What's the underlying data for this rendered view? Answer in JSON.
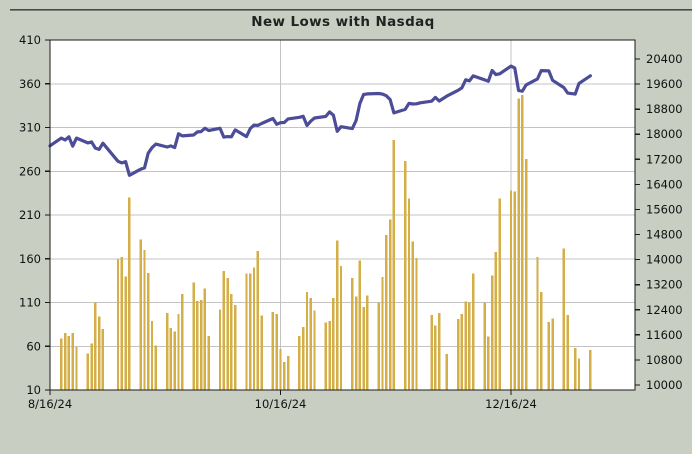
{
  "title": "New Lows with Nasdaq",
  "colors": {
    "background": "#c9cec2",
    "plot_background": "#ffffff",
    "grid": "#c3c3c3",
    "axis": "#1a1a1a",
    "bar": "#d4ae47",
    "line": "#4c4c99",
    "text": "#111111",
    "frame_line": "#474b46"
  },
  "chart_data": {
    "type": "bar+line",
    "title": "New Lows with Nasdaq",
    "legend": "none",
    "grid": true,
    "series": [
      {
        "name": "New Lows",
        "type": "bar",
        "axis": "left",
        "color": "#d4ae47"
      },
      {
        "name": "Nasdaq",
        "type": "line",
        "axis": "right",
        "color": "#4c4c99"
      }
    ],
    "left_axis": {
      "min": 10,
      "max": 410,
      "ticks": [
        410,
        360,
        310,
        260,
        210,
        160,
        110,
        60,
        10
      ]
    },
    "right_axis": {
      "min": 10000,
      "max": 20400,
      "ticks": [
        20400,
        19600,
        18800,
        18000,
        17200,
        16400,
        15600,
        14800,
        14000,
        13200,
        12400,
        11600,
        10800,
        10000
      ]
    },
    "x_tick_labels": [
      "8/16/24",
      "10/16/24",
      "12/16/24"
    ],
    "x": [
      "8/16/24",
      "8/19/24",
      "8/20/24",
      "8/21/24",
      "8/22/24",
      "8/23/24",
      "8/26/24",
      "8/27/24",
      "8/28/24",
      "8/29/24",
      "8/30/24",
      "9/3/24",
      "9/4/24",
      "9/5/24",
      "9/6/24",
      "9/9/24",
      "9/10/24",
      "9/11/24",
      "9/12/24",
      "9/13/24",
      "9/16/24",
      "9/17/24",
      "9/18/24",
      "9/19/24",
      "9/20/24",
      "9/23/24",
      "9/24/24",
      "9/25/24",
      "9/26/24",
      "9/27/24",
      "9/30/24",
      "10/1/24",
      "10/2/24",
      "10/3/24",
      "10/4/24",
      "10/7/24",
      "10/8/24",
      "10/9/24",
      "10/10/24",
      "10/11/24",
      "10/14/24",
      "10/15/24",
      "10/16/24",
      "10/17/24",
      "10/18/24",
      "10/21/24",
      "10/22/24",
      "10/23/24",
      "10/24/24",
      "10/25/24",
      "10/28/24",
      "10/29/24",
      "10/30/24",
      "10/31/24",
      "11/1/24",
      "11/4/24",
      "11/5/24",
      "11/6/24",
      "11/7/24",
      "11/8/24",
      "11/11/24",
      "11/12/24",
      "11/13/24",
      "11/14/24",
      "11/15/24",
      "11/18/24",
      "11/19/24",
      "11/20/24",
      "11/21/24",
      "11/22/24",
      "11/25/24",
      "11/26/24",
      "11/27/24",
      "11/29/24",
      "12/2/24",
      "12/3/24",
      "12/4/24",
      "12/5/24",
      "12/6/24",
      "12/9/24",
      "12/10/24",
      "12/11/24",
      "12/12/24",
      "12/13/24",
      "12/16/24",
      "12/17/24",
      "12/18/24",
      "12/19/24",
      "12/20/24",
      "12/23/24",
      "12/24/24",
      "12/26/24",
      "12/27/24",
      "12/30/24",
      "12/31/24",
      "1/2/25",
      "1/3/25",
      "1/6/25"
    ],
    "new_lows": [
      null,
      69,
      75,
      72,
      75,
      59,
      52,
      63,
      110,
      94,
      80,
      160,
      162,
      140,
      230,
      182,
      170,
      144,
      89,
      61,
      98,
      81,
      77,
      97,
      120,
      133,
      112,
      113,
      126,
      72,
      102,
      146,
      138,
      120,
      107,
      143,
      143,
      150,
      169,
      95,
      99,
      97,
      57,
      42,
      49,
      72,
      82,
      122,
      115,
      101,
      87,
      89,
      115,
      181,
      152,
      138,
      117,
      158,
      105,
      118,
      110,
      139,
      187,
      205,
      296,
      272,
      229,
      180,
      161,
      null,
      96,
      84,
      98,
      51,
      91,
      97,
      111,
      110,
      143,
      110,
      71,
      141,
      168,
      229,
      238,
      237,
      343,
      347,
      274,
      162,
      122,
      88,
      92,
      172,
      96,
      58,
      46,
      56
    ],
    "nasdaq": [
      17632,
      17877,
      17817,
      17918,
      17619,
      17878,
      17725,
      17754,
      17556,
      17516,
      17714,
      17136,
      17084,
      17128,
      16691,
      16884,
      16926,
      17396,
      17570,
      17684,
      17592,
      17628,
      17573,
      18014,
      17948,
      17974,
      18075,
      18083,
      18190,
      18119,
      18189,
      17910,
      17925,
      17918,
      18138,
      17924,
      18183,
      18292,
      18282,
      18343,
      18503,
      18316,
      18368,
      18374,
      18490,
      18540,
      18573,
      18277,
      18416,
      18519,
      18568,
      18713,
      18608,
      18095,
      18240,
      18180,
      18439,
      18983,
      19269,
      19287,
      19299,
      19281,
      19230,
      19108,
      18680,
      18791,
      18987,
      18966,
      18972,
      19003,
      19055,
      19175,
      19060,
      19218,
      19403,
      19480,
      19735,
      19700,
      19860,
      19736,
      19687,
      20034,
      19902,
      19927,
      20173,
      20109,
      19393,
      19372,
      19573,
      19765,
      20031,
      20020,
      19722,
      19487,
      19311,
      19281,
      19622,
      19865
    ]
  }
}
